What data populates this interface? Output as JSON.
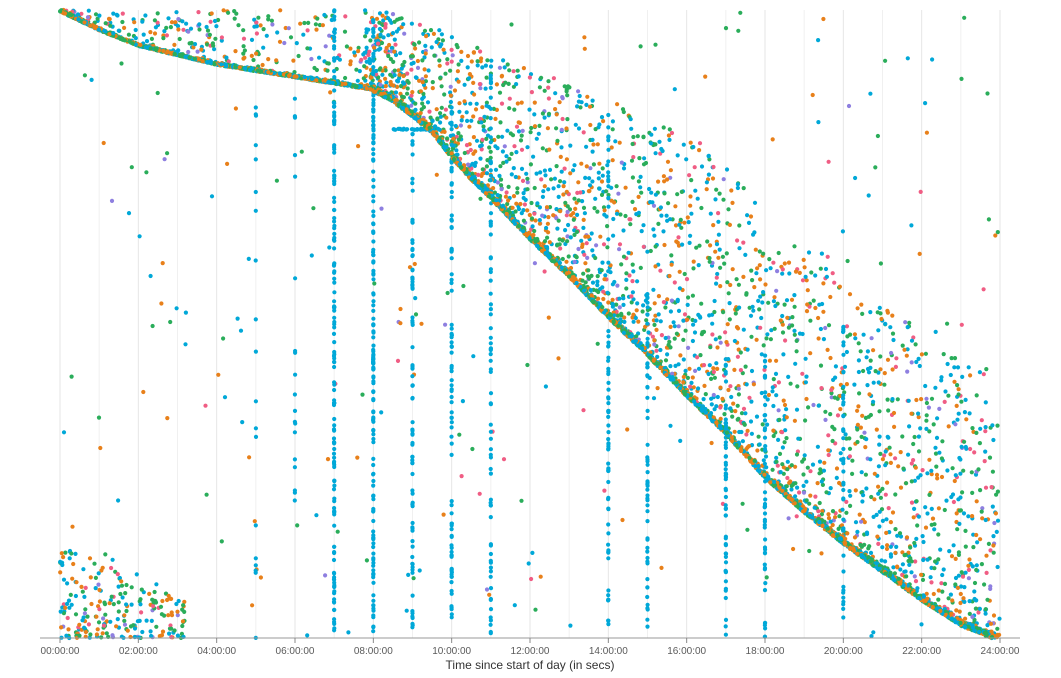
{
  "chart_data": {
    "type": "scatter",
    "title": "",
    "xlabel": "Time since start of day (in secs)",
    "ylabel": "",
    "xlim": [
      0,
      86400
    ],
    "ylim": [
      0,
      1
    ],
    "x_ticks": [
      {
        "value": 0,
        "label": "00:00:00"
      },
      {
        "value": 7200,
        "label": "02:00:00"
      },
      {
        "value": 14400,
        "label": "04:00:00"
      },
      {
        "value": 21600,
        "label": "06:00:00"
      },
      {
        "value": 28800,
        "label": "08:00:00"
      },
      {
        "value": 36000,
        "label": "10:00:00"
      },
      {
        "value": 43200,
        "label": "12:00:00"
      },
      {
        "value": 50400,
        "label": "14:00:00"
      },
      {
        "value": 57600,
        "label": "16:00:00"
      },
      {
        "value": 64800,
        "label": "18:00:00"
      },
      {
        "value": 72000,
        "label": "20:00:00"
      },
      {
        "value": 79200,
        "label": "22:00:00"
      },
      {
        "value": 86400,
        "label": "24:00:00"
      }
    ],
    "grid": "vertical",
    "legend": "none",
    "series": [
      {
        "color": "#00a8d8",
        "role": "main"
      },
      {
        "color": "#2aad5a",
        "role": "main"
      },
      {
        "color": "#e8801a",
        "role": "main"
      },
      {
        "color": "#f05d84",
        "role": "sparse"
      },
      {
        "color": "#8e7fe0",
        "role": "sparse"
      }
    ],
    "trend_curve": [
      [
        0,
        1.0
      ],
      [
        1800,
        0.985
      ],
      [
        3600,
        0.97
      ],
      [
        7200,
        0.945
      ],
      [
        10800,
        0.93
      ],
      [
        14400,
        0.915
      ],
      [
        18000,
        0.905
      ],
      [
        21600,
        0.895
      ],
      [
        25200,
        0.885
      ],
      [
        28800,
        0.875
      ],
      [
        30600,
        0.86
      ],
      [
        32400,
        0.835
      ],
      [
        34200,
        0.81
      ],
      [
        36000,
        0.77
      ],
      [
        37800,
        0.735
      ],
      [
        39600,
        0.705
      ],
      [
        43200,
        0.64
      ],
      [
        46800,
        0.58
      ],
      [
        50400,
        0.515
      ],
      [
        54000,
        0.455
      ],
      [
        57600,
        0.39
      ],
      [
        61200,
        0.33
      ],
      [
        64800,
        0.26
      ],
      [
        68400,
        0.205
      ],
      [
        72000,
        0.155
      ],
      [
        75600,
        0.11
      ],
      [
        79200,
        0.065
      ],
      [
        82800,
        0.025
      ],
      [
        86400,
        0.0
      ]
    ],
    "vertical_streaks": [
      {
        "x": 25200,
        "ymin": 0.0,
        "ymax": 1.0,
        "color": "#00a8d8",
        "density": 0.9
      },
      {
        "x": 28800,
        "ymin": 0.0,
        "ymax": 1.0,
        "color": "#00a8d8",
        "density": 1.0
      },
      {
        "x": 32400,
        "ymin": 0.0,
        "ymax": 0.82,
        "color": "#00a8d8",
        "density": 0.5
      },
      {
        "x": 36000,
        "ymin": 0.0,
        "ymax": 0.85,
        "color": "#00a8d8",
        "density": 0.55
      },
      {
        "x": 39600,
        "ymin": 0.0,
        "ymax": 0.95,
        "color": "#00a8d8",
        "density": 0.5
      },
      {
        "x": 50400,
        "ymin": 0.0,
        "ymax": 0.85,
        "color": "#00a8d8",
        "density": 0.45
      },
      {
        "x": 54000,
        "ymin": 0.0,
        "ymax": 0.55,
        "color": "#00a8d8",
        "density": 0.35
      },
      {
        "x": 61200,
        "ymin": 0.0,
        "ymax": 0.45,
        "color": "#00a8d8",
        "density": 0.35
      },
      {
        "x": 64800,
        "ymin": 0.0,
        "ymax": 0.45,
        "color": "#00a8d8",
        "density": 0.3
      },
      {
        "x": 72000,
        "ymin": 0.0,
        "ymax": 0.5,
        "color": "#00a8d8",
        "density": 0.3
      },
      {
        "x": 18000,
        "ymin": 0.0,
        "ymax": 0.85,
        "color": "#00a8d8",
        "density": 0.12
      },
      {
        "x": 21600,
        "ymin": 0.2,
        "ymax": 0.88,
        "color": "#00a8d8",
        "density": 0.12
      }
    ],
    "horizontal_streak": {
      "x0": 30600,
      "x1": 35000,
      "y": 0.81,
      "color": "#00a8d8"
    },
    "bottom_left_cluster": {
      "x0": 0,
      "x1": 11500,
      "y0": 0.0,
      "y1": 0.15
    },
    "point_counts": {
      "band": 3200,
      "above_band": 2400,
      "background": 260,
      "cluster": 220
    }
  }
}
